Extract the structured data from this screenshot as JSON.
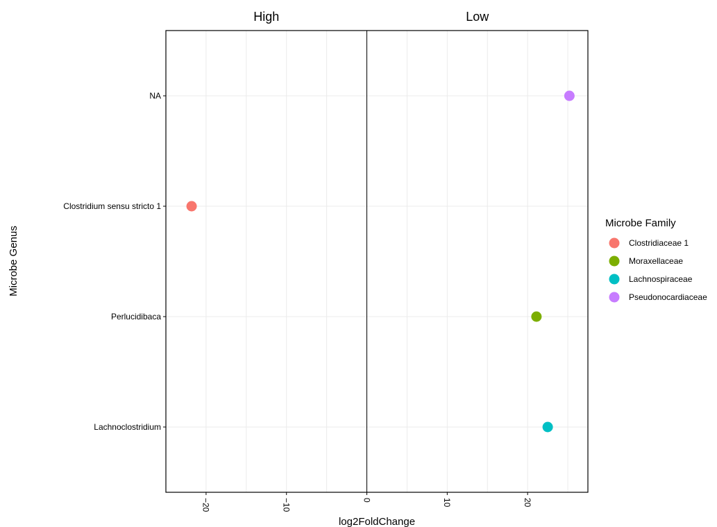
{
  "chart_data": {
    "type": "scatter",
    "facets": [
      "High",
      "Low"
    ],
    "xlabel": "log2FoldChange",
    "ylabel": "Microbe Genus",
    "xlim": [
      -25,
      27.5
    ],
    "x_ticks": [
      -20,
      -10,
      0,
      10,
      20
    ],
    "categories": [
      "NA",
      "Clostridium sensu stricto 1",
      "Perlucidibaca",
      "Lachnoclostridium"
    ],
    "vline": 0,
    "grid": true,
    "legend": {
      "title": "Microbe Family",
      "placement": "right",
      "entries": [
        "Clostridiaceae 1",
        "Moraxellaceae",
        "Lachnospiraceae",
        "Pseudonocardiaceae"
      ]
    },
    "colors": {
      "Clostridiaceae 1": "#F8766D",
      "Moraxellaceae": "#7CAE00",
      "Lachnospiraceae": "#00BFC4",
      "Pseudonocardiaceae": "#C77CFF"
    },
    "points": [
      {
        "genus": "NA",
        "family": "Pseudonocardiaceae",
        "x": 25.2
      },
      {
        "genus": "Clostridium sensu stricto 1",
        "family": "Clostridiaceae 1",
        "x": -21.8
      },
      {
        "genus": "Perlucidibaca",
        "family": "Moraxellaceae",
        "x": 21.1
      },
      {
        "genus": "Lachnoclostridium",
        "family": "Lachnospiraceae",
        "x": 22.5
      }
    ]
  }
}
